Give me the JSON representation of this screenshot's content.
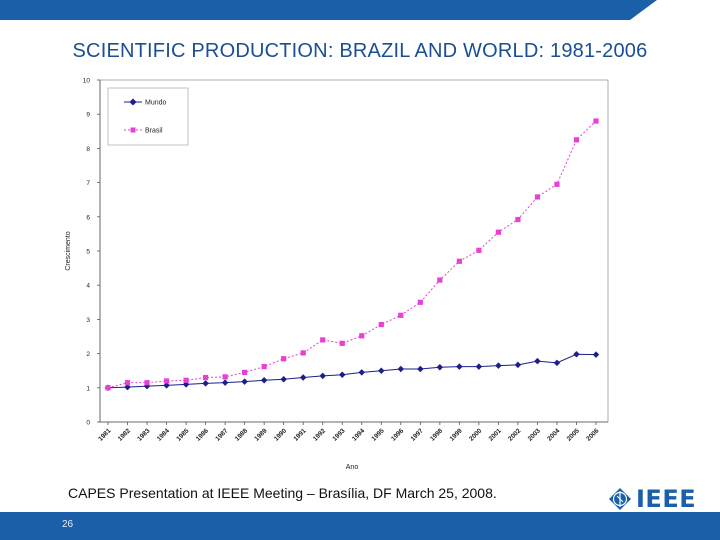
{
  "slide": {
    "title": "SCIENTIFIC PRODUCTION: BRAZIL AND WORLD: 1981-2006",
    "caption": "CAPES Presentation at IEEE Meeting – Brasília, DF March 25, 2008.",
    "page_number": "26",
    "logo_text": "IEEE",
    "colors": {
      "accent": "#1b5fa8",
      "title": "#1a4f96"
    }
  },
  "chart_data": {
    "type": "line",
    "title": "",
    "xlabel": "Ano",
    "ylabel": "Crescimento",
    "ylim": [
      0,
      10
    ],
    "yticks": [
      "0",
      "1",
      "2",
      "3",
      "4",
      "5",
      "6",
      "7",
      "8",
      "9",
      "10"
    ],
    "categories": [
      "1981",
      "1982",
      "1983",
      "1984",
      "1985",
      "1986",
      "1987",
      "1988",
      "1989",
      "1990",
      "1991",
      "1992",
      "1993",
      "1994",
      "1995",
      "1996",
      "1997",
      "1998",
      "1999",
      "2000",
      "2001",
      "2002",
      "2003",
      "2004",
      "2005",
      "2006"
    ],
    "legend_position": "top-left",
    "grid": false,
    "series": [
      {
        "name": "Mundo",
        "color": "#1e1e8c",
        "marker": "diamond",
        "values": [
          1.0,
          1.02,
          1.05,
          1.07,
          1.1,
          1.13,
          1.15,
          1.18,
          1.22,
          1.25,
          1.3,
          1.35,
          1.38,
          1.45,
          1.5,
          1.55,
          1.55,
          1.6,
          1.62,
          1.62,
          1.65,
          1.67,
          1.78,
          1.73,
          1.98,
          1.97
        ]
      },
      {
        "name": "Brasil",
        "color": "#e83fd6",
        "marker": "square",
        "values": [
          1.0,
          1.15,
          1.15,
          1.2,
          1.22,
          1.3,
          1.32,
          1.45,
          1.62,
          1.85,
          2.02,
          2.4,
          2.3,
          2.52,
          2.85,
          3.12,
          3.5,
          4.15,
          4.7,
          5.02,
          5.55,
          5.92,
          6.58,
          6.95,
          8.25,
          8.8
        ]
      }
    ]
  }
}
